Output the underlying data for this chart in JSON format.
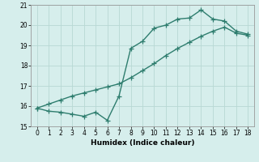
{
  "line1_x": [
    0,
    1,
    2,
    3,
    4,
    5,
    6,
    7,
    8,
    9,
    10,
    11,
    12,
    13,
    14,
    15,
    16,
    17,
    18
  ],
  "line1_y": [
    15.9,
    15.75,
    15.7,
    15.6,
    15.5,
    15.7,
    15.3,
    16.5,
    18.85,
    19.2,
    19.85,
    20.0,
    20.3,
    20.35,
    20.75,
    20.3,
    20.2,
    19.7,
    19.55
  ],
  "line2_x": [
    0,
    1,
    2,
    3,
    4,
    5,
    6,
    7,
    8,
    9,
    10,
    11,
    12,
    13,
    14,
    15,
    16,
    17,
    18
  ],
  "line2_y": [
    15.9,
    16.1,
    16.3,
    16.5,
    16.65,
    16.8,
    16.95,
    17.1,
    17.4,
    17.75,
    18.1,
    18.5,
    18.85,
    19.15,
    19.45,
    19.7,
    19.9,
    19.6,
    19.5
  ],
  "color": "#2e7d6e",
  "bg_color": "#d6eeec",
  "grid_color": "#b8d8d4",
  "xlabel": "Humidex (Indice chaleur)",
  "ylim": [
    15,
    21
  ],
  "xlim": [
    -0.5,
    18.5
  ],
  "yticks": [
    15,
    16,
    17,
    18,
    19,
    20,
    21
  ],
  "xticks": [
    0,
    1,
    2,
    3,
    4,
    5,
    6,
    7,
    8,
    9,
    10,
    11,
    12,
    13,
    14,
    15,
    16,
    17,
    18
  ],
  "marker": "+",
  "markersize": 4,
  "linewidth": 1.0,
  "tick_fontsize": 5.5,
  "xlabel_fontsize": 6.5
}
